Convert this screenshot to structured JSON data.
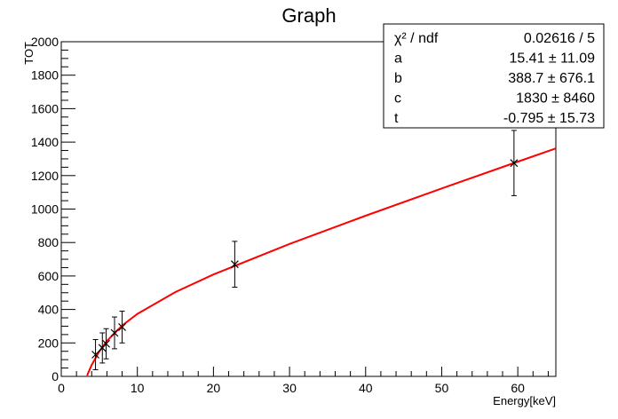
{
  "chart_data": {
    "type": "scatter",
    "title": "Graph",
    "x_label": "Energy[keV]",
    "y_label": "TOT",
    "xlim": [
      0,
      65
    ],
    "ylim": [
      0,
      2000
    ],
    "xticks": [
      0,
      10,
      20,
      30,
      40,
      50,
      60
    ],
    "yticks": [
      0,
      200,
      400,
      600,
      800,
      1000,
      1200,
      1400,
      1600,
      1800,
      2000
    ],
    "points": {
      "color": "#000000",
      "x": [
        4.5,
        5.4,
        5.9,
        7.0,
        8.0,
        22.8,
        59.5
      ],
      "values": [
        130,
        170,
        195,
        260,
        295,
        670,
        1275
      ],
      "errors": [
        90,
        90,
        90,
        95,
        95,
        137,
        195
      ]
    },
    "fit": {
      "color": "#ff0000",
      "x": [
        3.4,
        3.5,
        4,
        5,
        6,
        8,
        10,
        15,
        20,
        30,
        40,
        50,
        60,
        65
      ],
      "values": [
        5,
        16.5,
        68.7,
        150,
        211.9,
        303.9,
        373.3,
        504,
        608.9,
        791.6,
        960.2,
        1123.2,
        1283.2,
        1362.6
      ]
    },
    "stats": [
      [
        "χ² / ndf",
        "0.02616 / 5"
      ],
      [
        "a",
        "15.41 ± 11.09"
      ],
      [
        "b",
        "388.7 ± 676.1"
      ],
      [
        "c",
        "1830 ±  8460"
      ],
      [
        "t",
        "-0.795 ± 15.73"
      ]
    ]
  }
}
